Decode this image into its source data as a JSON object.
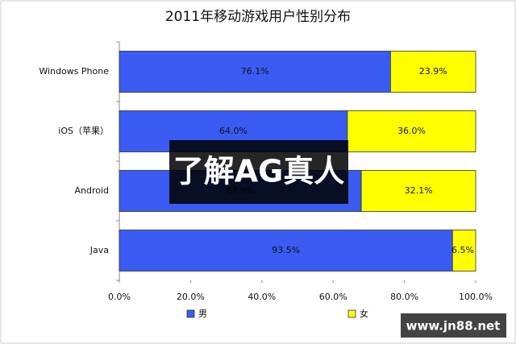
{
  "chart_data": {
    "type": "stacked-bar-horizontal",
    "title": "2011年移动游戏用户性别分布",
    "categories": [
      "Windows Phone",
      "iOS（苹果）",
      "Android",
      "Java"
    ],
    "series": [
      {
        "name": "男",
        "color": "#3a5cf2",
        "values": [
          76.1,
          64.0,
          67.9,
          93.5
        ],
        "value_labels": [
          "76.1%",
          "64.0%",
          "67.9%",
          "93.5%"
        ]
      },
      {
        "name": "女",
        "color": "#ffff00",
        "values": [
          23.9,
          36.0,
          32.1,
          6.5
        ],
        "value_labels": [
          "23.9%",
          "36.0%",
          "32.1%",
          "6.5%"
        ]
      }
    ],
    "xlim": [
      0,
      100
    ],
    "xticks": [
      {
        "value": 0,
        "label": "0.0%"
      },
      {
        "value": 20,
        "label": "20.0%"
      },
      {
        "value": 40,
        "label": "40.0%"
      },
      {
        "value": 60,
        "label": "60.0%"
      },
      {
        "value": 80,
        "label": "80.0%"
      },
      {
        "value": 100,
        "label": "100.0%"
      }
    ],
    "legend": "bottom",
    "annotations": [
      "了解AG真人",
      "www.jn88.net"
    ]
  }
}
